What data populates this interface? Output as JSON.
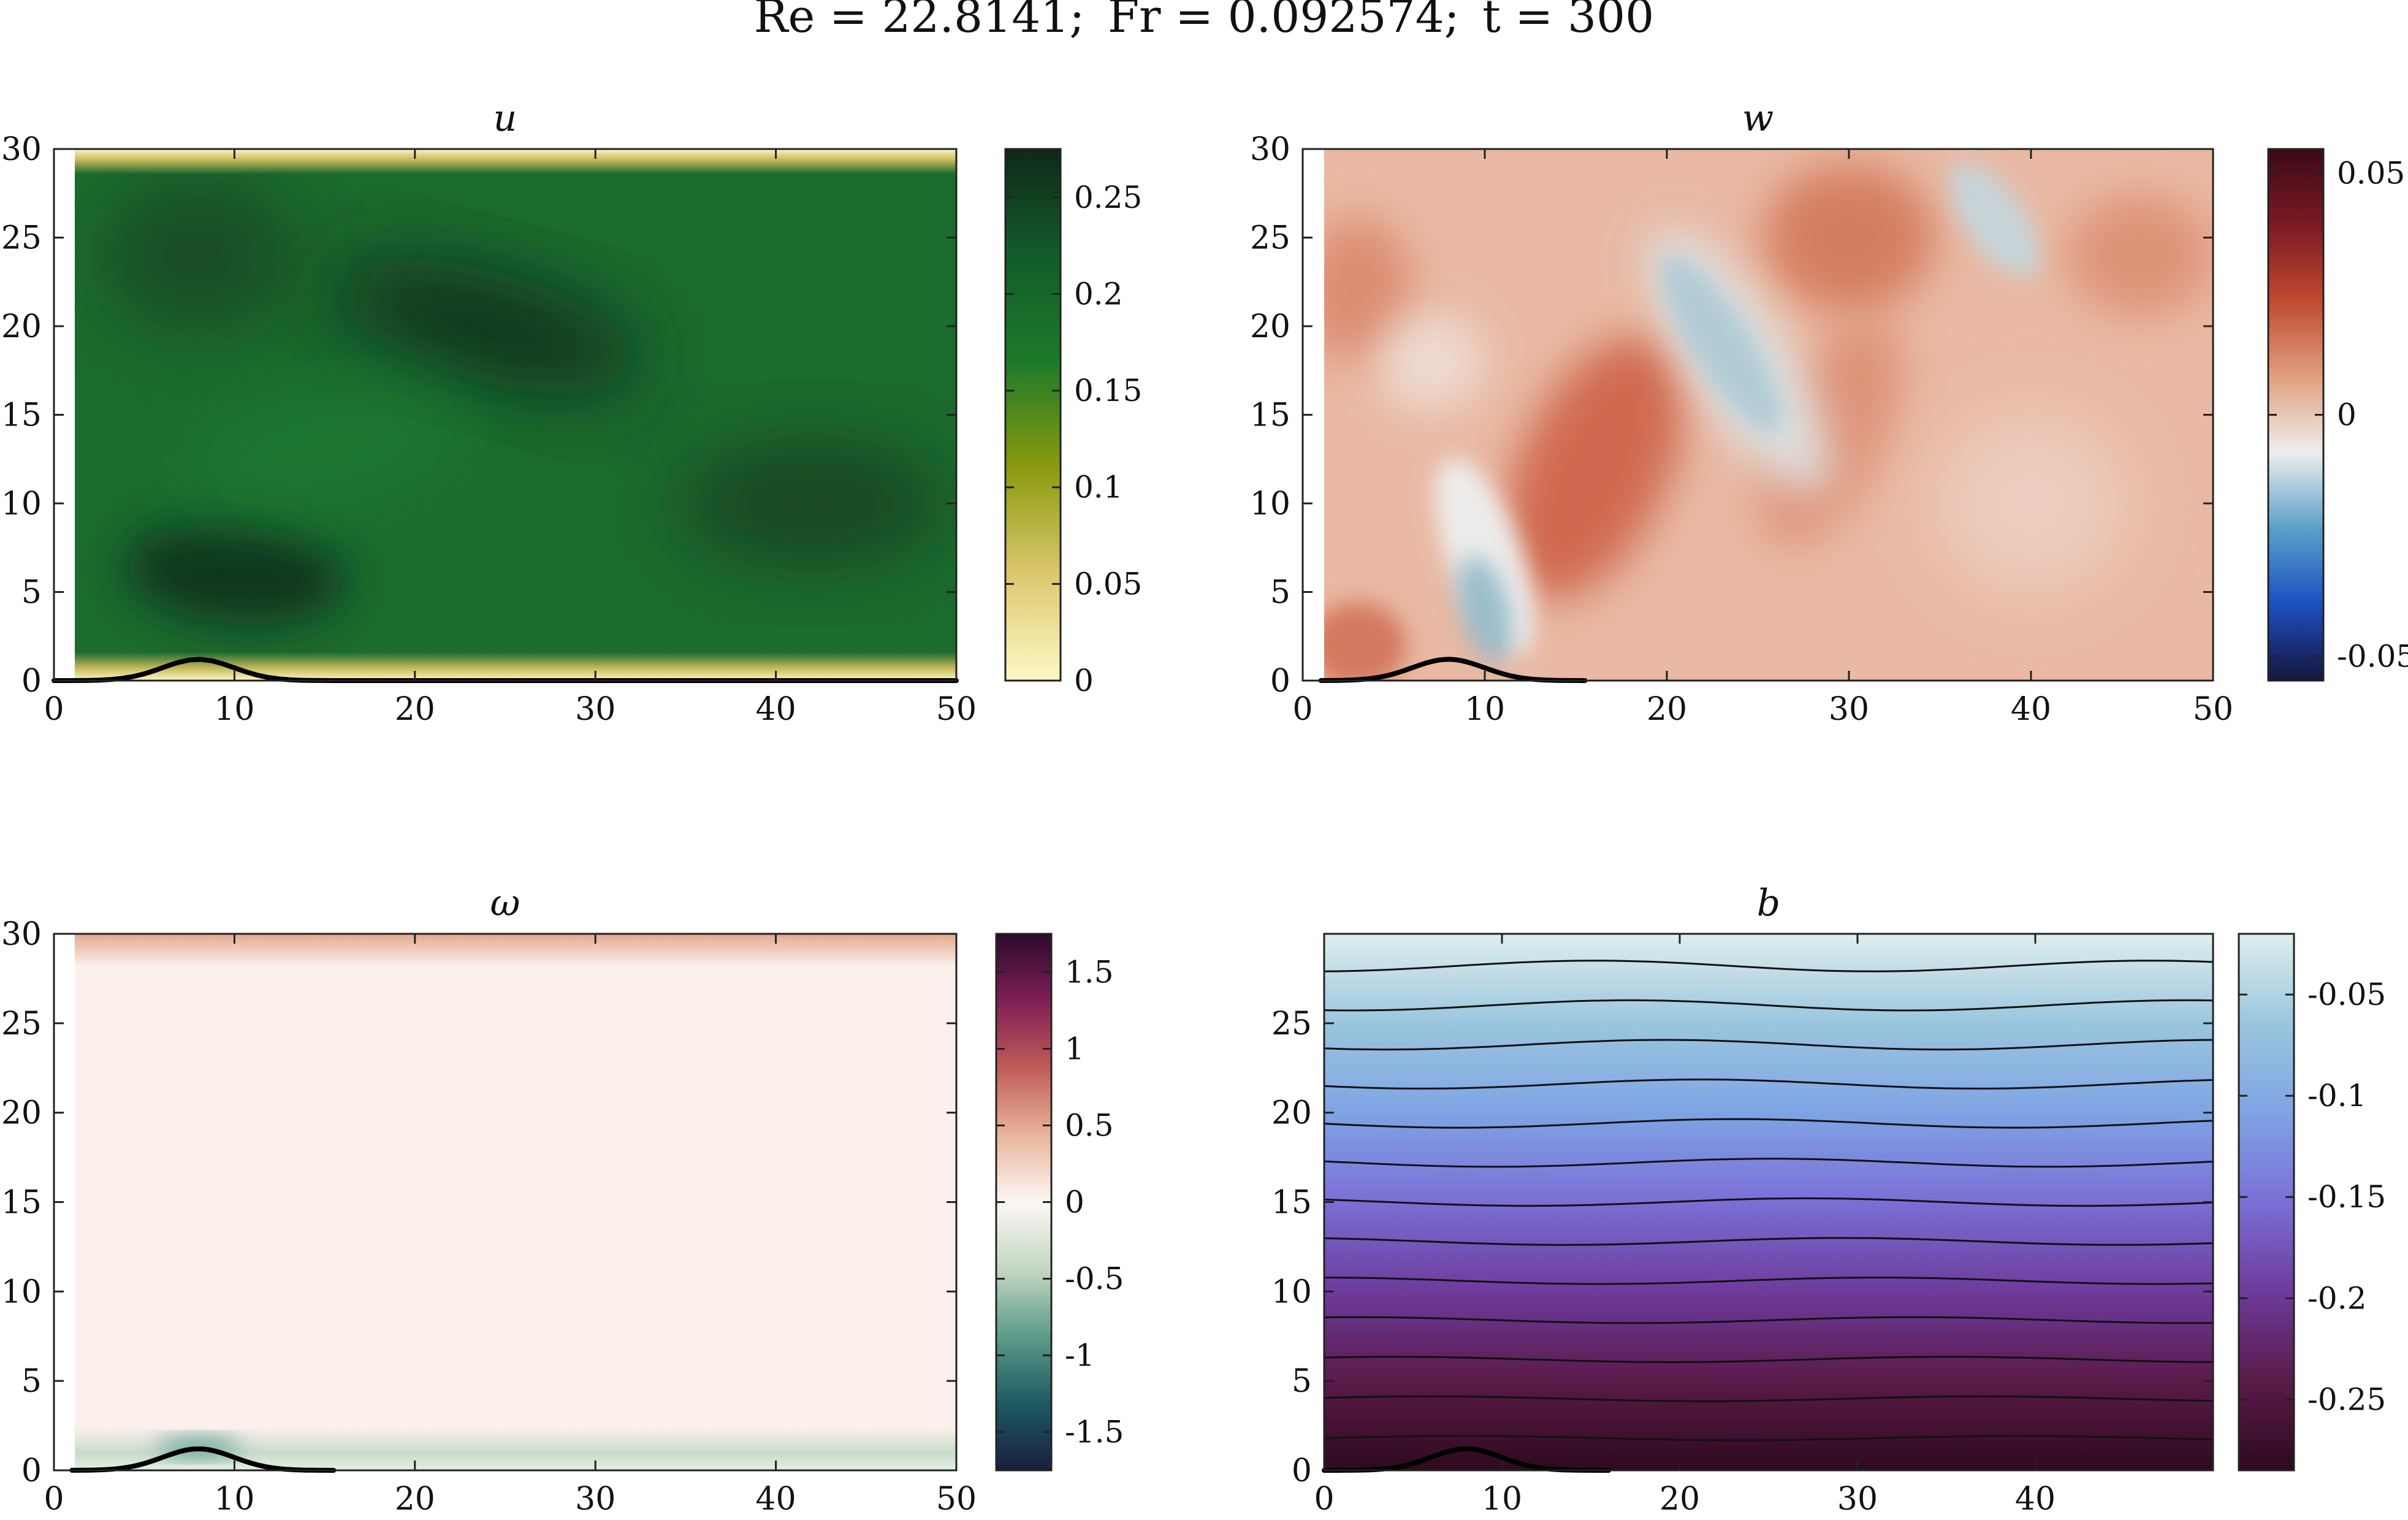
{
  "suptitle": {
    "re_label": "Re = 22.8141;",
    "fr_label": "Fr = 0.092574;",
    "t_label": "t = 300"
  },
  "chart_data": [
    {
      "type": "heatmap",
      "title": "u",
      "xlim": [
        0,
        50
      ],
      "ylim": [
        0,
        30
      ],
      "x_ticks": [
        "0",
        "10",
        "20",
        "30",
        "40",
        "50"
      ],
      "y_ticks": [
        "0",
        "5",
        "10",
        "15",
        "20",
        "25",
        "30"
      ],
      "colorbar": {
        "range": [
          0,
          0.275
        ],
        "ticks": [
          {
            "value": 0,
            "label": "0"
          },
          {
            "value": 0.05,
            "label": "0.05"
          },
          {
            "value": 0.1,
            "label": "0.1"
          },
          {
            "value": 0.15,
            "label": "0.15"
          },
          {
            "value": 0.2,
            "label": "0.2"
          },
          {
            "value": 0.25,
            "label": "0.25"
          }
        ],
        "colors": [
          "#fdf8c5",
          "#dcc870",
          "#8a9b0e",
          "#1d7a2a",
          "#135c2a",
          "#0f2819"
        ]
      },
      "field_summary": "interior ~0.2-0.27 (dark green), near-zero boundary layers at bottom and top walls",
      "hill": {
        "center": 8,
        "height": 1.2,
        "width": 2.8
      }
    },
    {
      "type": "heatmap",
      "title": "w",
      "xlim": [
        0,
        50
      ],
      "ylim": [
        0,
        30
      ],
      "x_ticks": [
        "0",
        "10",
        "20",
        "30",
        "40",
        "50"
      ],
      "y_ticks": [
        "0",
        "5",
        "10",
        "15",
        "20",
        "25",
        "30"
      ],
      "colorbar": {
        "range": [
          -0.055,
          0.055
        ],
        "ticks": [
          {
            "value": -0.05,
            "label": "-0.05"
          },
          {
            "value": 0,
            "label": "0"
          },
          {
            "value": 0.05,
            "label": "0.05"
          }
        ],
        "colors": [
          "#15163d",
          "#1c4fc0",
          "#5aa0c8",
          "#eeeeee",
          "#e0a080",
          "#c04a30",
          "#7a1a24",
          "#3b0a17"
        ]
      },
      "field_summary": "mostly weak positive (orange) with diagonal bands, light blue negative patches",
      "hill": {
        "center": 8,
        "height": 1.2,
        "width": 2.8
      }
    },
    {
      "type": "heatmap",
      "title": "ω",
      "xlim": [
        0,
        50
      ],
      "ylim": [
        0,
        30
      ],
      "x_ticks": [
        "0",
        "10",
        "20",
        "30",
        "40",
        "50"
      ],
      "y_ticks": [
        "0",
        "5",
        "10",
        "15",
        "20",
        "25",
        "30"
      ],
      "colorbar": {
        "range": [
          -1.75,
          1.75
        ],
        "ticks": [
          {
            "value": -1.5,
            "label": "-1.5"
          },
          {
            "value": -1,
            "label": "-1"
          },
          {
            "value": -0.5,
            "label": "-0.5"
          },
          {
            "value": 0,
            "label": "0"
          },
          {
            "value": 0.5,
            "label": "0.5"
          },
          {
            "value": 1,
            "label": "1"
          },
          {
            "value": 1.5,
            "label": "1.5"
          }
        ],
        "colors": [
          "#1a1e3d",
          "#1c5a63",
          "#5d9b8a",
          "#c4d8c2",
          "#fdf7f5",
          "#e8b49a",
          "#c15c58",
          "#7e1f56",
          "#2b0a2e"
        ]
      },
      "field_summary": "near zero everywhere; weak positive near top wall, negative layer near bottom wall",
      "hill": {
        "center": 8,
        "height": 1.2,
        "width": 2.8
      }
    },
    {
      "type": "heatmap",
      "title": "b",
      "xlim": [
        0,
        50
      ],
      "ylim": [
        0,
        30
      ],
      "x_ticks": [
        "0",
        "10",
        "20",
        "30",
        "40"
      ],
      "y_ticks": [
        "0",
        "5",
        "10",
        "15",
        "20",
        "25"
      ],
      "colorbar": {
        "range": [
          -0.285,
          -0.02
        ],
        "ticks": [
          {
            "value": -0.25,
            "label": "-0.25"
          },
          {
            "value": -0.2,
            "label": "-0.2"
          },
          {
            "value": -0.15,
            "label": "-0.15"
          },
          {
            "value": -0.1,
            "label": "-0.1"
          },
          {
            "value": -0.05,
            "label": "-0.05"
          }
        ],
        "colors": [
          "#2e0a1e",
          "#5a1a49",
          "#6e3b9c",
          "#7a6fd6",
          "#7ea4e4",
          "#9ac6de",
          "#dfeeee"
        ]
      },
      "contour_levels_y": [
        1.8,
        4.0,
        6.2,
        8.4,
        10.6,
        12.8,
        15.0,
        17.2,
        19.4,
        21.6,
        23.8,
        26.0,
        28.2
      ],
      "field_summary": "stably stratified, b increases with height; contour lines nearly horizontal with weak waves",
      "hill": {
        "center": 8,
        "height": 1.2,
        "width": 2.8
      }
    }
  ]
}
